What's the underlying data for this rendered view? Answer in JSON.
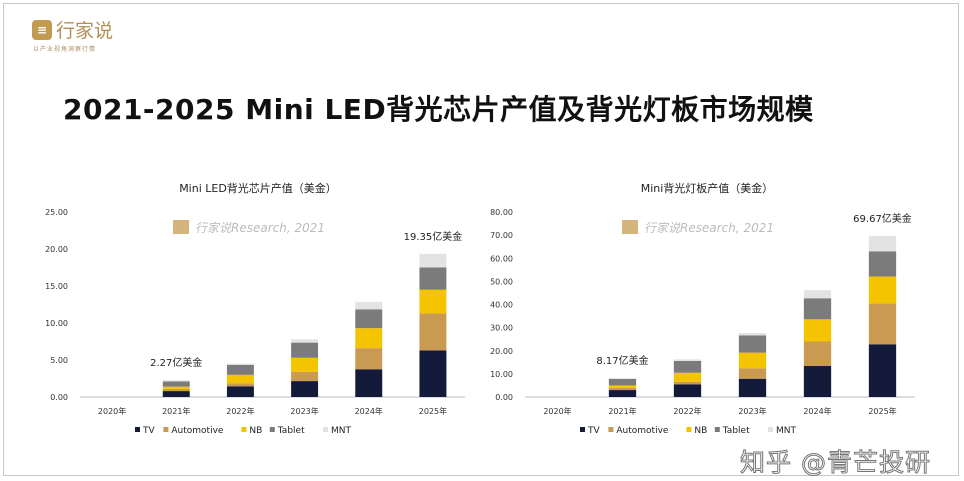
{
  "logo": {
    "name": "行家说",
    "tagline": "以产业视角洞察行情"
  },
  "title": "2021-2025 Mini LED背光芯片产值及背光灯板市场规模",
  "watermark_text": "行家说Research, 2021",
  "footer_watermark": "知乎 @青芒投研",
  "colors": {
    "TV": "#141a3a",
    "Automotive": "#c99a52",
    "NB": "#f5c400",
    "Tablet": "#7b7b7b",
    "MNT": "#e3e3e3"
  },
  "chart_data": [
    {
      "type": "bar",
      "stacked": true,
      "title": "Mini LED背光芯片产值（美金）",
      "categories": [
        "2020年",
        "2021年",
        "2022年",
        "2023年",
        "2024年",
        "2025年"
      ],
      "ylim": [
        0,
        25
      ],
      "yticks": [
        "0.00",
        "5.00",
        "10.00",
        "15.00",
        "20.00",
        "25.00"
      ],
      "grid": false,
      "legend": "bottom",
      "series": [
        {
          "name": "TV",
          "values": [
            0,
            0.8,
            1.45,
            2.15,
            3.75,
            6.3
          ]
        },
        {
          "name": "Automotive",
          "values": [
            0,
            0.3,
            0.4,
            1.25,
            2.85,
            5.0
          ]
        },
        {
          "name": "NB",
          "values": [
            0,
            0.3,
            1.15,
            1.9,
            2.7,
            3.2
          ]
        },
        {
          "name": "Tablet",
          "values": [
            0,
            0.7,
            1.35,
            2.05,
            2.55,
            3.0
          ]
        },
        {
          "name": "MNT",
          "values": [
            0,
            0.17,
            0.15,
            0.45,
            1.0,
            1.85
          ]
        }
      ],
      "annotations": [
        {
          "category": "2021年",
          "text": "2.27亿美金"
        },
        {
          "category": "2025年",
          "text": "19.35亿美金"
        }
      ]
    },
    {
      "type": "bar",
      "stacked": true,
      "title": "Mini背光灯板产值（美金）",
      "categories": [
        "2020年",
        "2021年",
        "2022年",
        "2023年",
        "2024年",
        "2025年"
      ],
      "ylim": [
        0,
        80
      ],
      "yticks": [
        "0.00",
        "10.00",
        "20.00",
        "30.00",
        "40.00",
        "50.00",
        "60.00",
        "70.00",
        "80.00"
      ],
      "grid": false,
      "legend": "bottom",
      "series": [
        {
          "name": "TV",
          "values": [
            0,
            3.0,
            5.5,
            7.9,
            13.4,
            22.8
          ]
        },
        {
          "name": "Automotive",
          "values": [
            0,
            1.0,
            1.1,
            4.5,
            10.6,
            17.6
          ]
        },
        {
          "name": "NB",
          "values": [
            0,
            1.0,
            3.9,
            6.8,
            9.6,
            11.7
          ]
        },
        {
          "name": "Tablet",
          "values": [
            0,
            2.8,
            5.1,
            7.4,
            9.1,
            10.9
          ]
        },
        {
          "name": "MNT",
          "values": [
            0,
            0.37,
            0.7,
            1.1,
            3.5,
            6.67
          ]
        }
      ],
      "annotations": [
        {
          "category": "2021年",
          "text": "8.17亿美金"
        },
        {
          "category": "2025年",
          "text": "69.67亿美金"
        }
      ]
    }
  ]
}
